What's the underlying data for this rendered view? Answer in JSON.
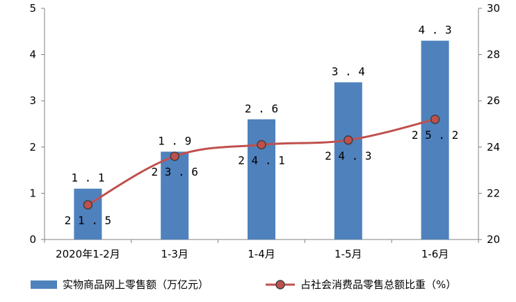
{
  "chart_data": {
    "type": "bar",
    "categories": [
      "2020年1-2月",
      "1-3月",
      "1-4月",
      "1-5月",
      "1-6月"
    ],
    "series": [
      {
        "name": "实物商品网上零售额（万亿元）",
        "type": "bar",
        "axis": "left",
        "values": [
          1.1,
          1.9,
          2.6,
          3.4,
          4.3
        ],
        "color": "#4F81BD"
      },
      {
        "name": "占社会消费品零售总额比重（%）",
        "type": "line",
        "axis": "right",
        "values": [
          21.5,
          23.6,
          24.1,
          24.3,
          25.2
        ],
        "color": "#C0504D"
      }
    ],
    "left_axis": {
      "ylim": [
        0,
        5
      ],
      "ticks": [
        "0",
        "1",
        "2",
        "3",
        "4",
        "5"
      ]
    },
    "right_axis": {
      "ylim": [
        20,
        30
      ],
      "ticks": [
        "20",
        "22",
        "24",
        "26",
        "28",
        "30"
      ]
    },
    "legend_position": "bottom",
    "grid": false
  }
}
